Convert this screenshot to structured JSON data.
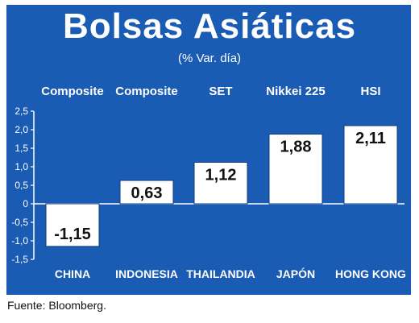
{
  "title": "Bolsas Asiáticas",
  "subtitle": "(% Var. día)",
  "source": "Fuente: Bloomberg.",
  "colors": {
    "background": "#1a5bb4",
    "bar": "#ffffff",
    "text": "#ffffff",
    "label_dark": "#111111"
  },
  "chart_data": {
    "type": "bar",
    "title": "Bolsas Asiáticas",
    "subtitle": "(% Var. día)",
    "categories": [
      "CHINA",
      "INDONESIA",
      "THAILANDIA",
      "JAPÓN",
      "HONG KONG"
    ],
    "index_names": [
      "Composite",
      "Composite",
      "SET",
      "Nikkei 225",
      "HSI"
    ],
    "values": [
      -1.15,
      0.63,
      1.12,
      1.88,
      2.11
    ],
    "value_labels": [
      "-1,15",
      "0,63",
      "1,12",
      "1,88",
      "2,11"
    ],
    "ylim": [
      -1.5,
      2.5
    ],
    "yticks": [
      "2,5",
      "2,0",
      "1,5",
      "1,0",
      "0,5",
      "0",
      "-0,5",
      "-1,0",
      "-1,5"
    ],
    "ytick_values": [
      2.5,
      2.0,
      1.5,
      1.0,
      0.5,
      0,
      -0.5,
      -1.0,
      -1.5
    ],
    "grid": false,
    "legend": "none"
  }
}
